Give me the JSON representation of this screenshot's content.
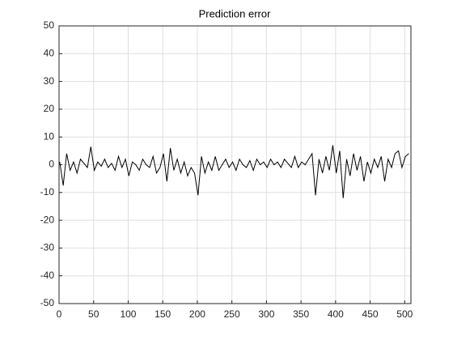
{
  "chart_data": {
    "type": "line",
    "title": "Prediction error",
    "x": [
      1,
      6,
      11,
      16,
      21,
      26,
      31,
      36,
      41,
      46,
      51,
      56,
      61,
      66,
      71,
      76,
      81,
      86,
      91,
      96,
      101,
      106,
      111,
      116,
      121,
      126,
      131,
      136,
      141,
      146,
      151,
      156,
      161,
      166,
      171,
      176,
      181,
      186,
      191,
      196,
      201,
      206,
      211,
      216,
      221,
      226,
      231,
      236,
      241,
      246,
      251,
      256,
      261,
      266,
      271,
      276,
      281,
      286,
      291,
      296,
      301,
      306,
      311,
      316,
      321,
      326,
      331,
      336,
      341,
      346,
      351,
      356,
      361,
      366,
      371,
      376,
      381,
      386,
      391,
      396,
      401,
      406,
      411,
      416,
      421,
      426,
      431,
      436,
      441,
      446,
      451,
      456,
      461,
      466,
      471,
      476,
      481,
      486,
      491,
      496,
      501,
      506
    ],
    "series": [
      {
        "name": "Prediction error",
        "color": "#000000",
        "values": [
          1,
          -7.5,
          4,
          -2,
          1,
          -3,
          2,
          0.5,
          -1,
          6.5,
          -2,
          1,
          -0.5,
          2,
          -1,
          0.5,
          -2,
          3,
          -1,
          2,
          -4,
          1,
          0,
          -2,
          2,
          0,
          -1,
          3,
          -3,
          -1,
          4,
          -6,
          6,
          -2,
          2,
          -3,
          1,
          -4,
          -1,
          -3,
          -11,
          3,
          -3,
          1,
          -2,
          3,
          -2,
          0,
          2,
          -1,
          1,
          -2,
          2,
          0,
          -1,
          1.5,
          -2,
          2,
          0,
          1,
          -1,
          2,
          0,
          1,
          -1,
          2,
          0.5,
          -1,
          3,
          -1,
          1,
          0,
          2,
          4,
          -11,
          2,
          -3,
          3,
          -2,
          7,
          -3,
          5,
          -12,
          2,
          -4,
          4,
          -2,
          3,
          -6,
          1,
          -3,
          2,
          -1,
          3,
          -6,
          2,
          -1,
          4,
          5,
          -1,
          3,
          4
        ]
      }
    ],
    "xlim": [
      0,
      509
    ],
    "ylim": [
      -50,
      50
    ],
    "xticks": [
      0,
      50,
      100,
      150,
      200,
      250,
      300,
      350,
      400,
      450,
      500
    ],
    "yticks": [
      -50,
      -40,
      -30,
      -20,
      -10,
      0,
      10,
      20,
      30,
      40,
      50
    ],
    "grid": true
  }
}
